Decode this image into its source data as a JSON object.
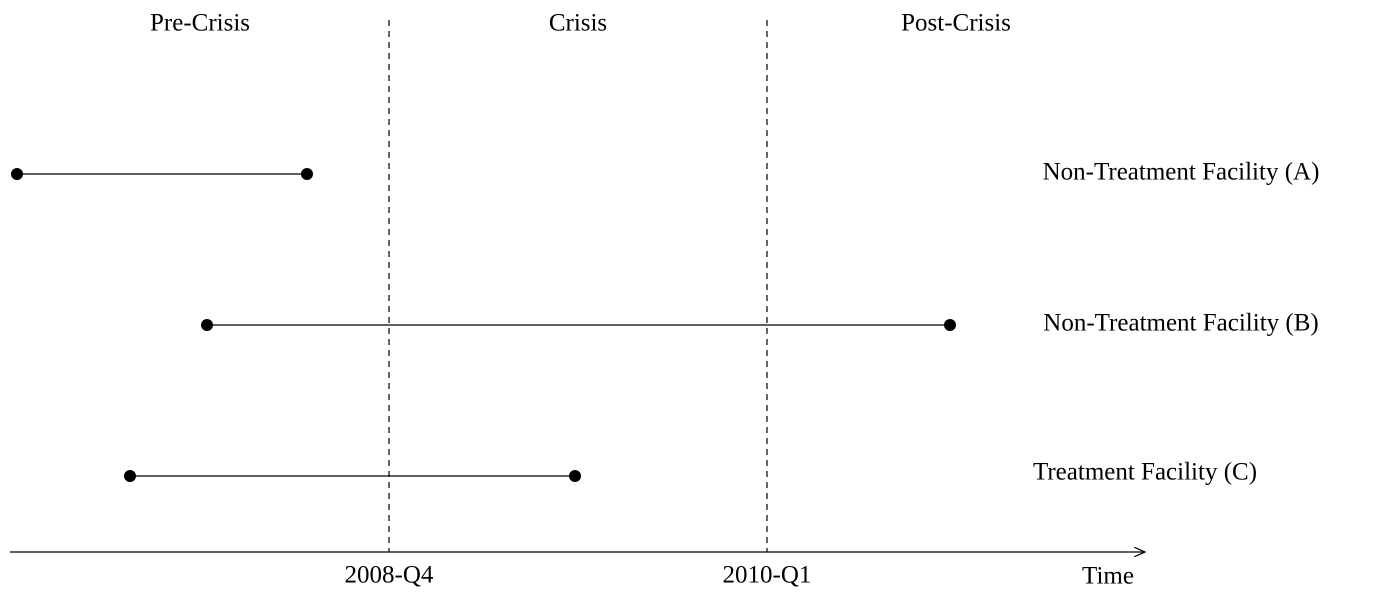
{
  "periods": [
    "Pre-Crisis",
    "Crisis",
    "Post-Crisis"
  ],
  "boundaries": [
    "2008-Q4",
    "2010-Q1"
  ],
  "facilities": [
    "Non-Treatment Facility (A)",
    "Non-Treatment Facility (B)",
    "Treatment Facility (C)"
  ],
  "axis_label": "Time"
}
